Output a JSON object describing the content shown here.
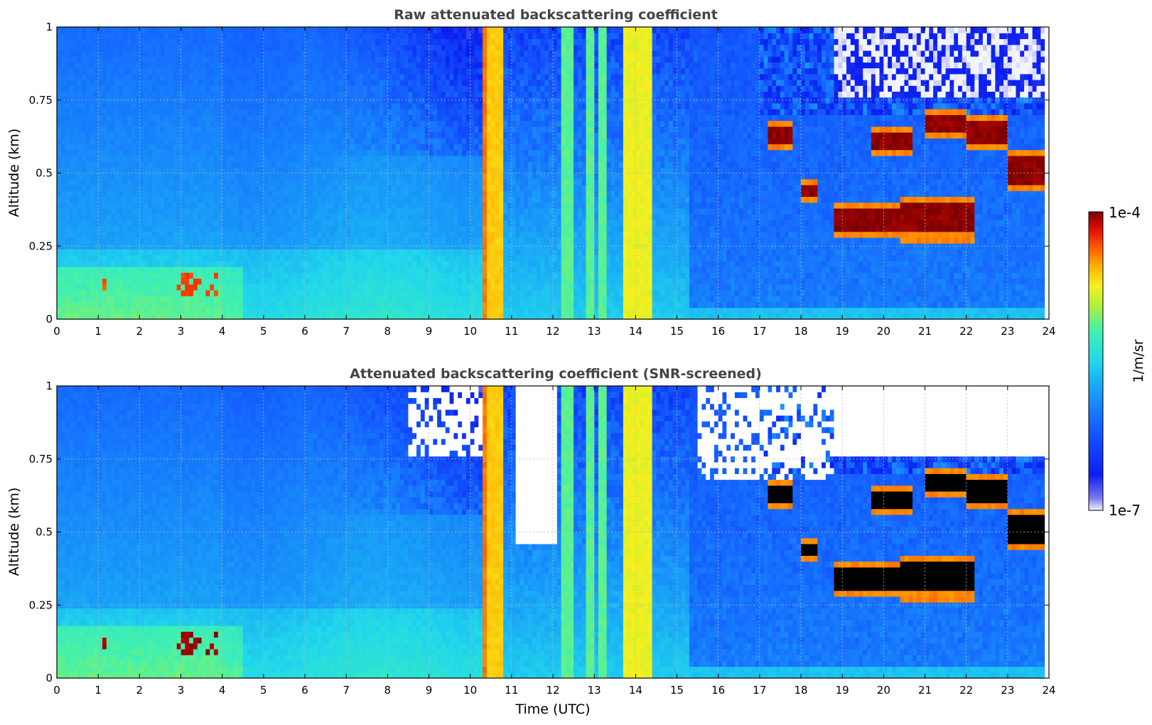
{
  "figure": {
    "colorbar": {
      "label": "1/m/sr",
      "max_label": "1e-4",
      "min_label": "1e-7",
      "scale": "log",
      "range": [
        1e-07,
        0.0001
      ],
      "colormap": "jet-like (light blue-white at low end to dark red at high end)"
    }
  },
  "chart_data": [
    {
      "type": "heatmap",
      "title": "Raw attenuated backscattering coefficient",
      "xlabel": "",
      "ylabel": "Altitude (km)",
      "xlim": [
        0,
        24
      ],
      "ylim": [
        0,
        1
      ],
      "x_ticks": [
        "0",
        "1",
        "2",
        "3",
        "4",
        "5",
        "6",
        "7",
        "8",
        "9",
        "10",
        "11",
        "12",
        "13",
        "14",
        "15",
        "16",
        "17",
        "18",
        "19",
        "20",
        "21",
        "22",
        "23",
        "24"
      ],
      "y_ticks": [
        "0",
        "0.25",
        "0.5",
        "0.75",
        "1"
      ],
      "grid": true,
      "features": {
        "surface_layer_top_km": 0.25,
        "high_signal_bands_utc": [
          [
            10.3,
            10.8
          ],
          [
            13.7,
            14.4
          ]
        ],
        "cloud_layers": [
          {
            "x": [
              17.2,
              17.8
            ],
            "y": [
              0.58,
              0.68
            ]
          },
          {
            "x": [
              18.0,
              18.4
            ],
            "y": [
              0.4,
              0.48
            ]
          },
          {
            "x": [
              18.8,
              20.5
            ],
            "y": [
              0.28,
              0.4
            ]
          },
          {
            "x": [
              19.7,
              20.7
            ],
            "y": [
              0.57,
              0.65
            ]
          },
          {
            "x": [
              20.4,
              22.2
            ],
            "y": [
              0.27,
              0.42
            ]
          },
          {
            "x": [
              21.0,
              22.0
            ],
            "y": [
              0.62,
              0.72
            ]
          },
          {
            "x": [
              22.0,
              23.0
            ],
            "y": [
              0.58,
              0.7
            ]
          },
          {
            "x": [
              23.0,
              23.9
            ],
            "y": [
              0.45,
              0.58
            ]
          }
        ]
      }
    },
    {
      "type": "heatmap",
      "title": "Attenuated backscattering coefficient (SNR-screened)",
      "xlabel": "Time (UTC)",
      "ylabel": "Altitude (km)",
      "xlim": [
        0,
        24
      ],
      "ylim": [
        0,
        1
      ],
      "x_ticks": [
        "0",
        "1",
        "2",
        "3",
        "4",
        "5",
        "6",
        "7",
        "8",
        "9",
        "10",
        "11",
        "12",
        "13",
        "14",
        "15",
        "16",
        "17",
        "18",
        "19",
        "20",
        "21",
        "22",
        "23",
        "24"
      ],
      "y_ticks": [
        "0",
        "0.25",
        "0.5",
        "0.75",
        "1"
      ],
      "grid": true,
      "features": {
        "screened_out_regions": [
          {
            "x": [
              8.5,
              10.3
            ],
            "y": [
              0.75,
              1.0
            ]
          },
          {
            "x": [
              11.1,
              12.1
            ],
            "y": [
              0.45,
              1.0
            ]
          },
          {
            "x": [
              15.5,
              18.8
            ],
            "y": [
              0.65,
              1.0
            ]
          },
          {
            "x": [
              18.8,
              24.0
            ],
            "y": [
              0.8,
              1.0
            ]
          }
        ]
      }
    }
  ]
}
